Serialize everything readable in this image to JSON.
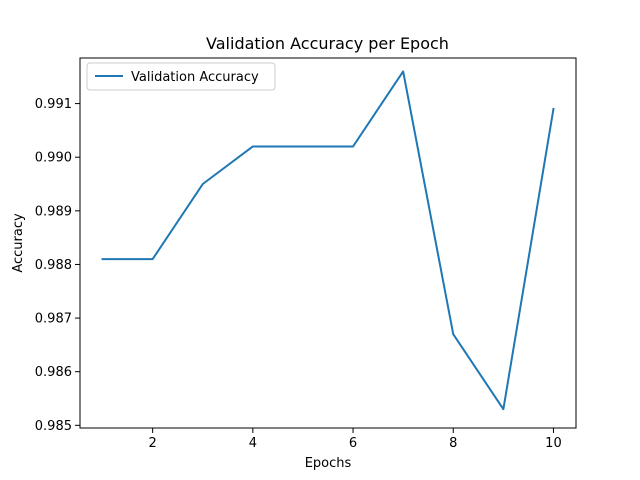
{
  "chart_data": {
    "type": "line",
    "title": "Validation Accuracy per Epoch",
    "xlabel": "Epochs",
    "ylabel": "Accuracy",
    "xlim": [
      0.55,
      10.45
    ],
    "ylim": [
      0.98495,
      0.99185
    ],
    "x_ticks": [
      2,
      4,
      6,
      8,
      10
    ],
    "x_tick_labels": [
      "2",
      "4",
      "6",
      "8",
      "10"
    ],
    "y_ticks": [
      0.985,
      0.986,
      0.987,
      0.988,
      0.989,
      0.99,
      0.991
    ],
    "y_tick_labels": [
      "0.985",
      "0.986",
      "0.987",
      "0.988",
      "0.989",
      "0.990",
      "0.991"
    ],
    "grid": false,
    "legend_position": "top-left",
    "series": [
      {
        "name": "Validation Accuracy",
        "color": "#1f77b4",
        "x": [
          1,
          2,
          3,
          4,
          5,
          6,
          7,
          8,
          9,
          10
        ],
        "values": [
          0.9881,
          0.9881,
          0.9895,
          0.9902,
          0.9902,
          0.9902,
          0.9916,
          0.9867,
          0.9853,
          0.9909
        ]
      }
    ]
  }
}
